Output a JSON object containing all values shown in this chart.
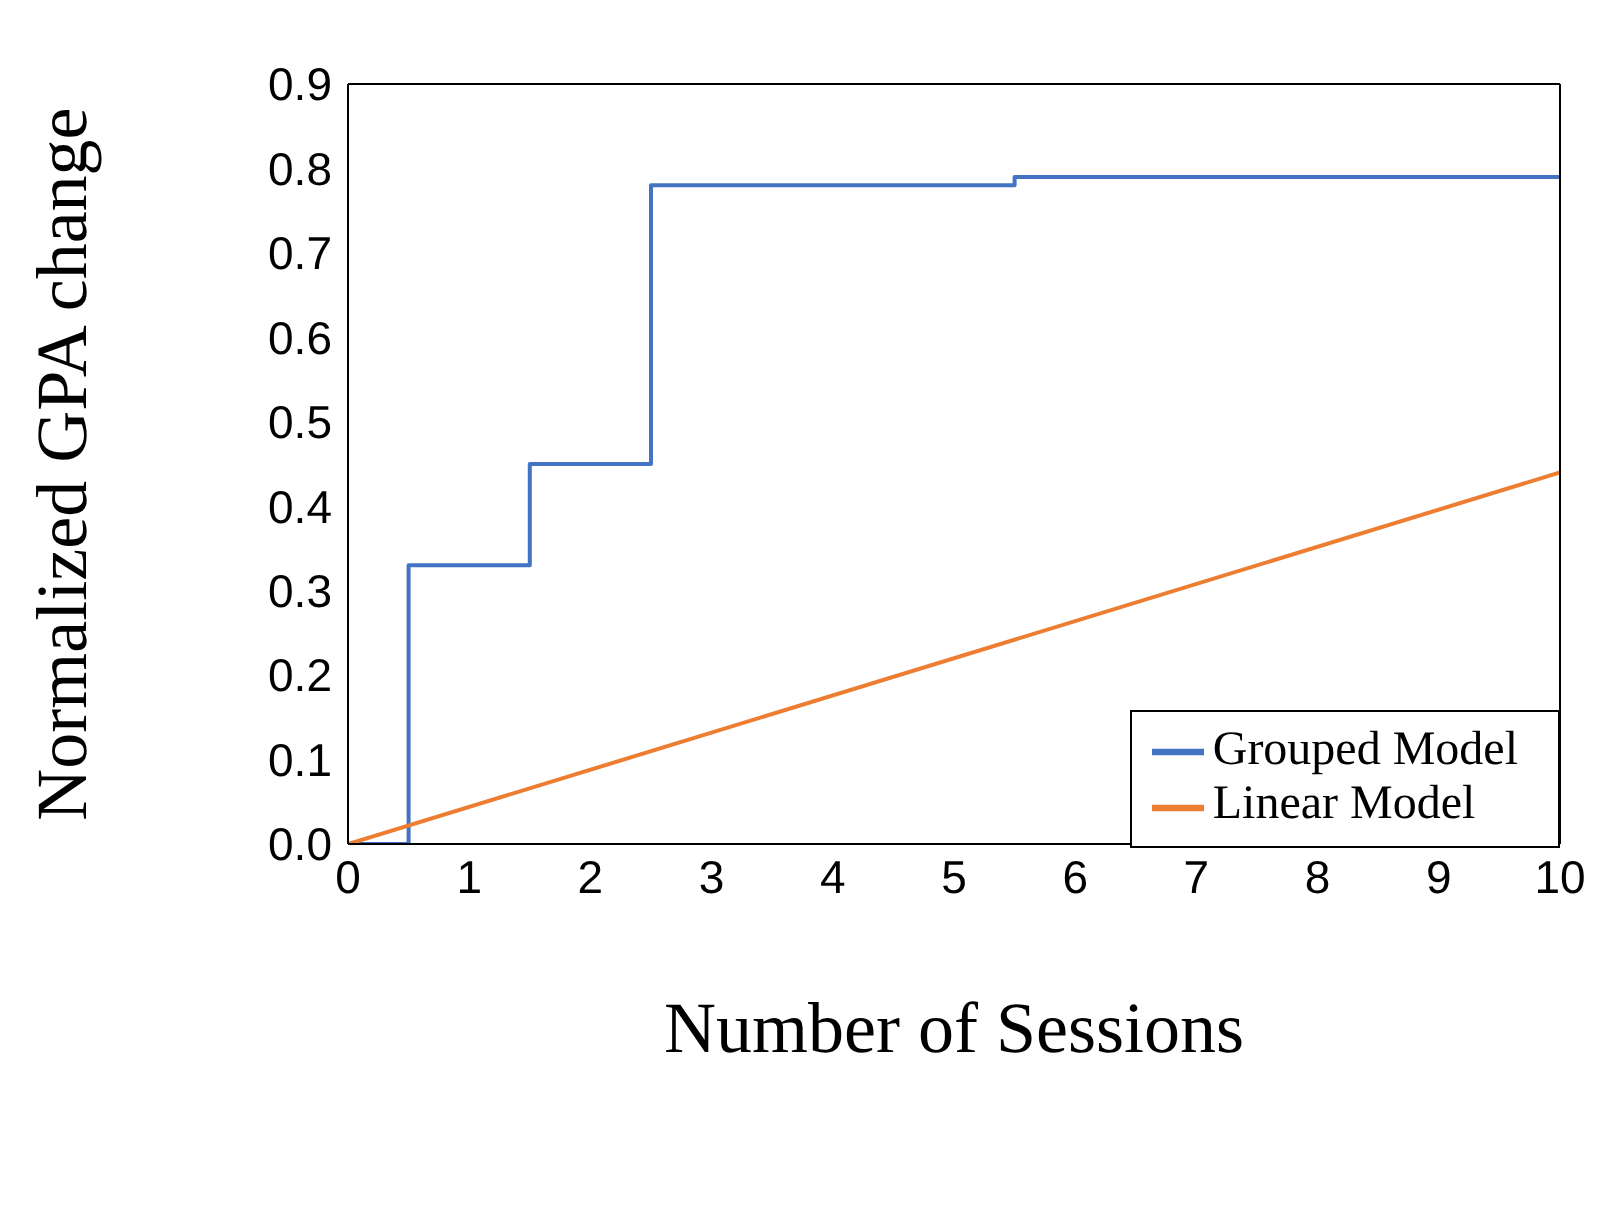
{
  "chart_data": {
    "type": "line",
    "xlabel": "Number of Sessions",
    "ylabel": "Normalized GPA change",
    "xlim": [
      0,
      10
    ],
    "xticks": [
      0,
      1,
      2,
      3,
      4,
      5,
      6,
      7,
      8,
      9,
      10
    ],
    "ylim": [
      0,
      0.9
    ],
    "yticks": [
      {
        "value": 0,
        "label": "0.0"
      },
      {
        "value": 0.1,
        "label": "0.1"
      },
      {
        "value": 0.2,
        "label": "0.2"
      },
      {
        "value": 0.3,
        "label": "0.3"
      },
      {
        "value": 0.4,
        "label": "0.4"
      },
      {
        "value": 0.5,
        "label": "0.5"
      },
      {
        "value": 0.6,
        "label": "0.6"
      },
      {
        "value": 0.7,
        "label": "0.7"
      },
      {
        "value": 0.8,
        "label": "0.8"
      },
      {
        "value": 0.9,
        "label": "0.9"
      }
    ],
    "grid": false,
    "legend": "bottom right",
    "marker": "none",
    "series": [
      {
        "name": "Grouped Model",
        "type": "step",
        "color": "#4472c4",
        "x": [
          0,
          0.5,
          1.5,
          2.5,
          5.5,
          10
        ],
        "values": [
          0,
          0.33,
          0.45,
          0.78,
          0.79,
          0.79
        ]
      },
      {
        "name": "Linear Model",
        "type": "line",
        "color": "#ed7d31",
        "x": [
          0,
          10
        ],
        "values": [
          0,
          0.44
        ]
      }
    ]
  }
}
